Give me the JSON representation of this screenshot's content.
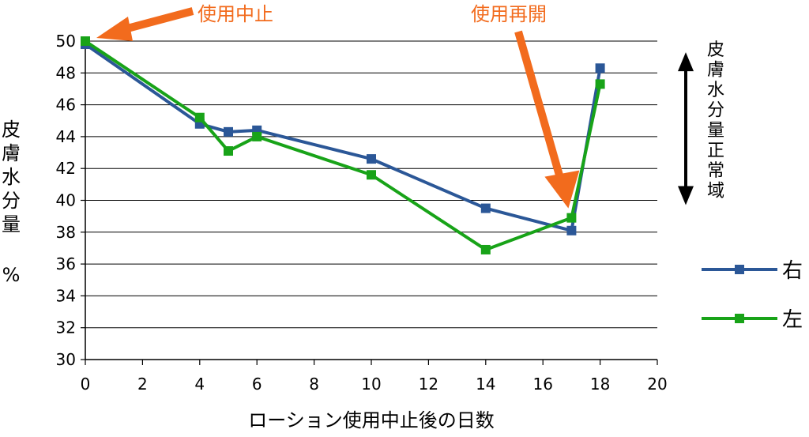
{
  "chart_data": {
    "type": "line",
    "xlabel": "ローション使用中止後の日数",
    "ylabel": "皮膚水分量",
    "yunit": "%",
    "xlim": [
      0,
      20
    ],
    "ylim": [
      30,
      50
    ],
    "xticks": [
      "0",
      "2",
      "4",
      "6",
      "8",
      "10",
      "12",
      "14",
      "16",
      "18",
      "20"
    ],
    "yticks": [
      "30",
      "32",
      "34",
      "36",
      "38",
      "40",
      "42",
      "44",
      "46",
      "48",
      "50"
    ],
    "grid": "horizontal",
    "legend_position": "right",
    "series": [
      {
        "name": "右",
        "color": "#2b5797",
        "x": [
          0,
          4,
          5,
          6,
          10,
          14,
          17,
          18
        ],
        "y": [
          49.8,
          44.8,
          44.3,
          44.4,
          42.6,
          39.5,
          38.1,
          48.3
        ]
      },
      {
        "name": "左",
        "color": "#18a318",
        "x": [
          0,
          4,
          5,
          6,
          10,
          14,
          17,
          18
        ],
        "y": [
          50.0,
          45.2,
          43.1,
          44.0,
          41.6,
          36.9,
          38.9,
          47.3
        ]
      }
    ],
    "annotations": [
      {
        "text": "使用中止",
        "color": "#f26b1d",
        "points_to": [
          0,
          50
        ]
      },
      {
        "text": "使用再開",
        "color": "#f26b1d",
        "points_to": [
          17,
          39
        ]
      }
    ],
    "range_label": "皮膚水分量正常域",
    "range": [
      40,
      49
    ]
  }
}
